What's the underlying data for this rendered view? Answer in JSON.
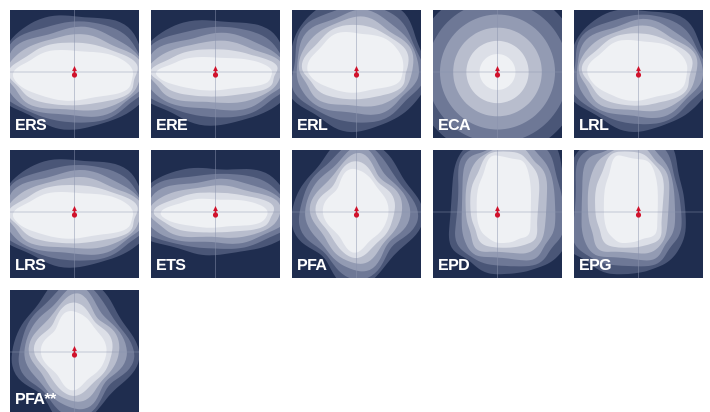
{
  "tiles": [
    {
      "label": "ERS",
      "shape": "ellipse-wide"
    },
    {
      "label": "ERE",
      "shape": "lens"
    },
    {
      "label": "ERL",
      "shape": "shield"
    },
    {
      "label": "ECA",
      "shape": "circle"
    },
    {
      "label": "LRL",
      "shape": "ellipse"
    },
    {
      "label": "LRS",
      "shape": "ellipse-flat"
    },
    {
      "label": "ETS",
      "shape": "bowtie"
    },
    {
      "label": "PFA",
      "shape": "cross"
    },
    {
      "label": "EPD",
      "shape": "tall-right"
    },
    {
      "label": "EPG",
      "shape": "tall-left"
    },
    {
      "label": "PFA**",
      "shape": "cross-top"
    }
  ],
  "colors": {
    "background": "#1f2d4f",
    "bands": [
      "#4a5677",
      "#6e7896",
      "#939bb3",
      "#b8bdcd",
      "#dcdfe7",
      "#eff1f4"
    ],
    "crosshair": "#8a93ad",
    "marker": "#d0112b"
  }
}
